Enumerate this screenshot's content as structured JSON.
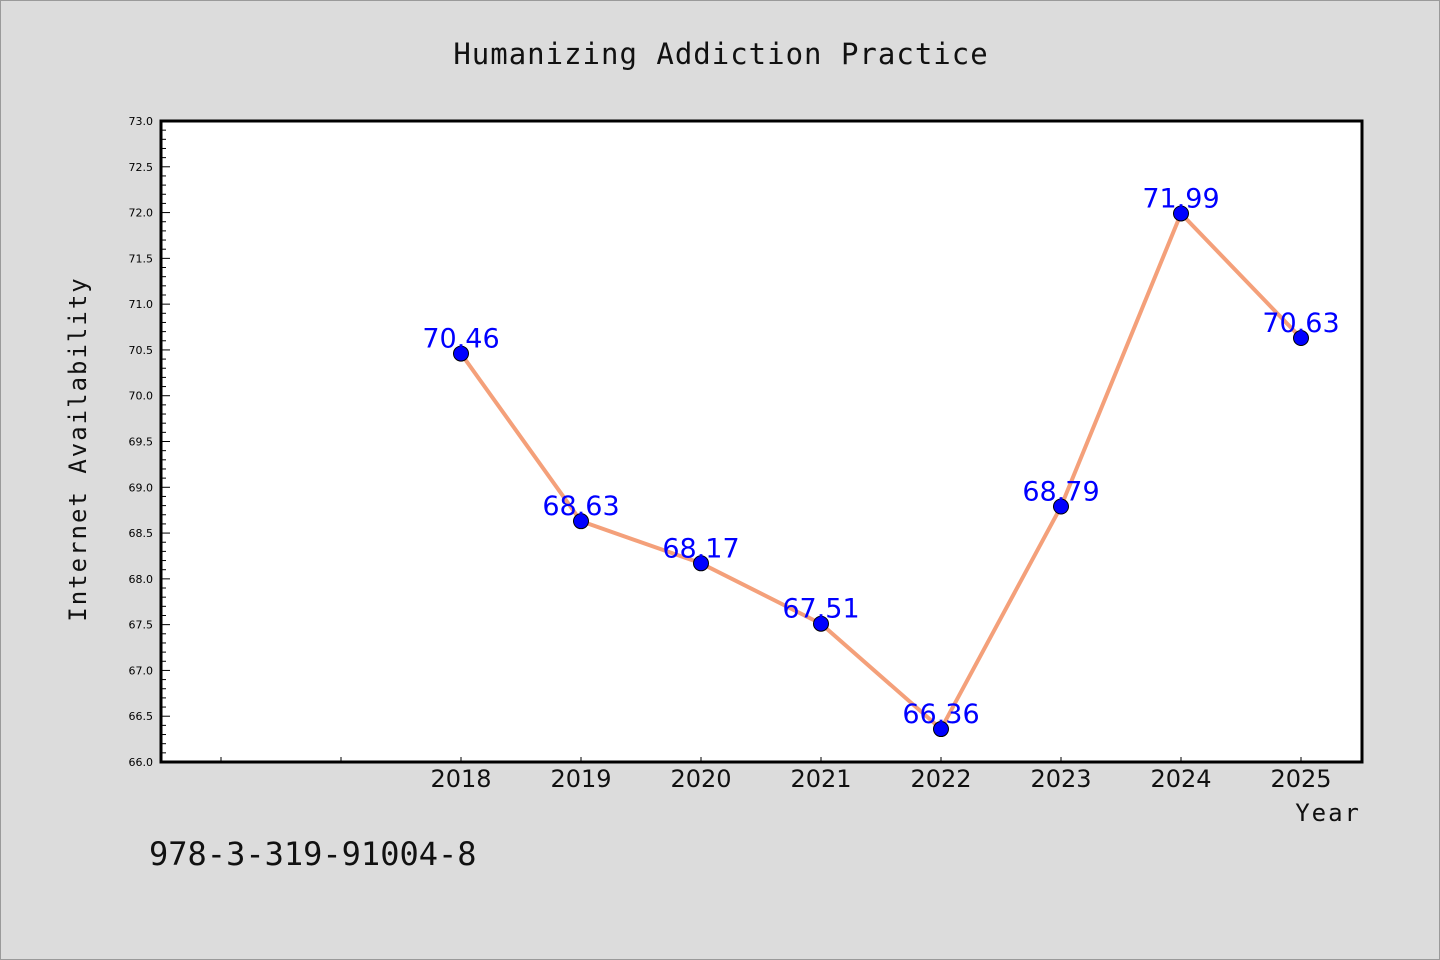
{
  "chart_data": {
    "type": "line",
    "title": "Humanizing Addiction Practice",
    "xlabel": "Year",
    "ylabel": "Internet Availability",
    "categories": [
      "2018",
      "2019",
      "2020",
      "2021",
      "2022",
      "2023",
      "2024",
      "2025"
    ],
    "series": [
      {
        "values": [
          70.46,
          68.63,
          68.17,
          67.51,
          66.36,
          68.79,
          71.99,
          70.63
        ],
        "data_labels": [
          "70.46",
          "68.63",
          "68.17",
          "67.51",
          "66.36",
          "68.79",
          "71.99",
          "70.63"
        ],
        "line_color": "#f4a07a",
        "marker_color": "#0000ff"
      }
    ],
    "ylim": [
      66.0,
      73.0
    ],
    "y_ticks": [
      "66.0",
      "66.5",
      "67.0",
      "67.5",
      "68.0",
      "68.5",
      "69.0",
      "69.5",
      "70.0",
      "70.5",
      "71.0",
      "71.5",
      "72.0",
      "72.5",
      "73.0"
    ],
    "grid": false,
    "legend": "none",
    "data_label_color": "#0000ff",
    "plot_background": "#ffffff",
    "figure_background": "#dcdcdc"
  },
  "footnote": "978-3-319-91004-8"
}
